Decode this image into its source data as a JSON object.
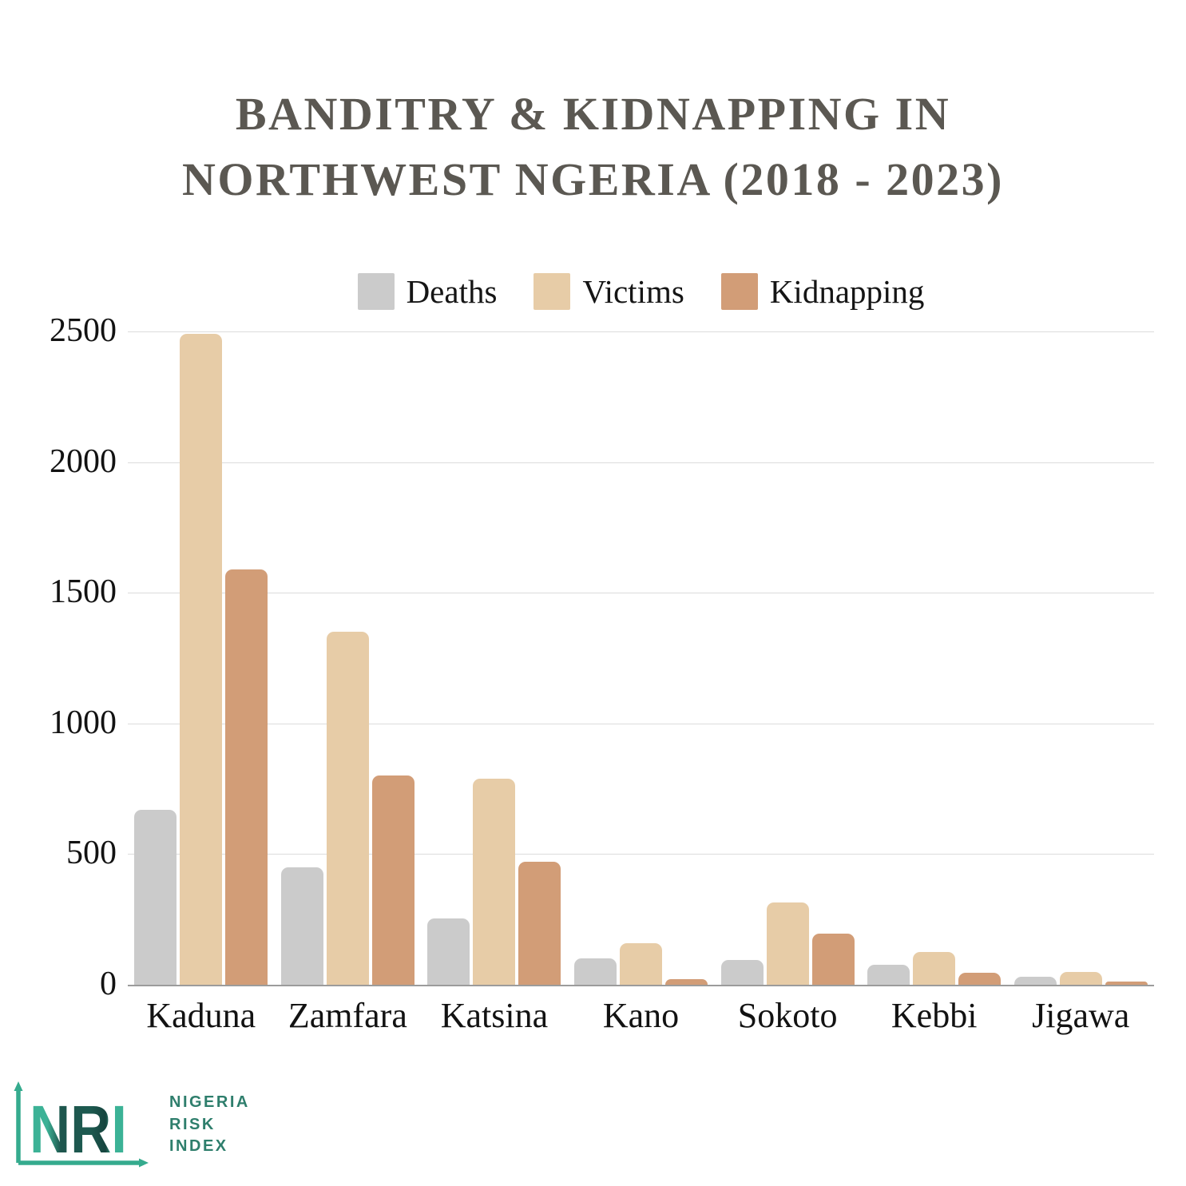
{
  "title": {
    "line1": "BANDITRY & KIDNAPPING IN",
    "line2": "NORTHWEST NGERIA (2018 - 2023)"
  },
  "chart_data": {
    "type": "bar",
    "title": "BANDITRY & KIDNAPPING IN NORTHWEST NGERIA (2018 - 2023)",
    "categories": [
      "Kaduna",
      "Zamfara",
      "Katsina",
      "Kano",
      "Sokoto",
      "Kebbi",
      "Jigawa"
    ],
    "series": [
      {
        "name": "Deaths",
        "color": "#cbcbcb",
        "values": [
          670,
          450,
          255,
          100,
          95,
          75,
          30
        ]
      },
      {
        "name": "Victims",
        "color": "#e7cca7",
        "values": [
          2490,
          1350,
          790,
          160,
          315,
          125,
          48
        ]
      },
      {
        "name": "Kidnapping",
        "color": "#d29d77",
        "values": [
          1590,
          800,
          470,
          20,
          195,
          45,
          12
        ]
      }
    ],
    "ylim": [
      0,
      2500
    ],
    "yticks": [
      0,
      500,
      1000,
      1500,
      2000,
      2500
    ],
    "grid": "horizontal gridlines at each y tick, bottom axis line darker",
    "legend_position": "top center"
  },
  "logo": {
    "monogram": "NRI",
    "name_lines": [
      "NIGERIA",
      "RISK",
      "INDEX"
    ],
    "teal_light": "#3cb296",
    "teal_dark": "#1d574d",
    "text_color": "#2e7e6c"
  }
}
